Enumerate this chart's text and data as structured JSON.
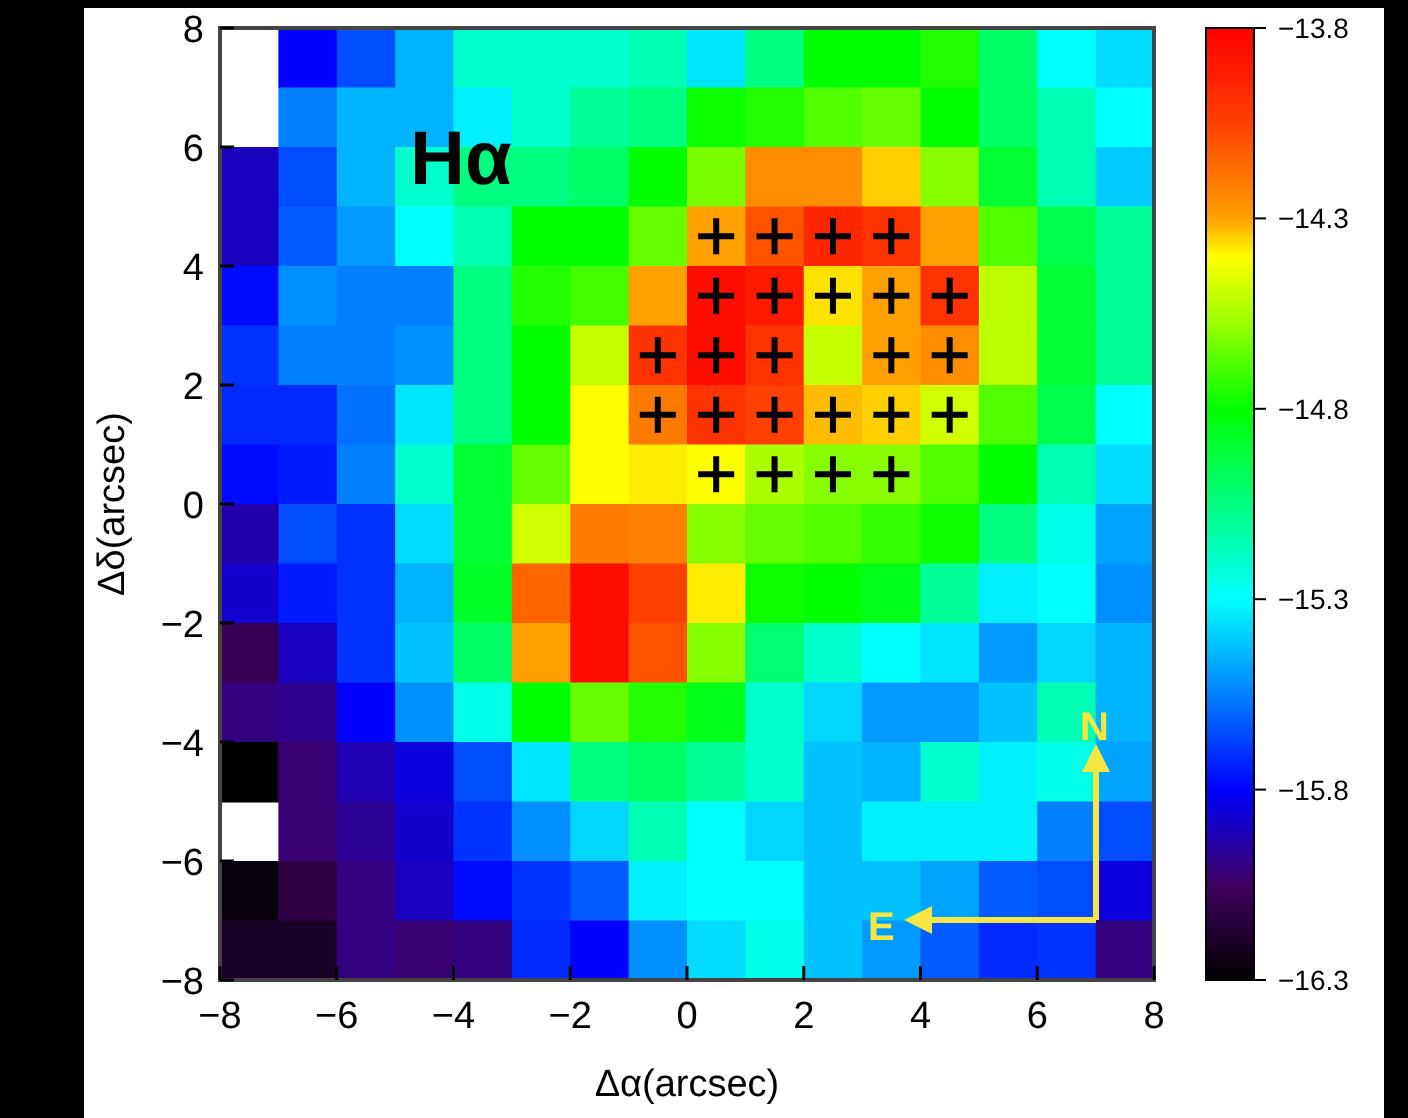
{
  "chart_data": {
    "type": "heatmap",
    "xlabel": "Δα(arcsec)",
    "ylabel": "Δδ(arcsec)",
    "xlim": [
      -8,
      8
    ],
    "ylim": [
      -8,
      8
    ],
    "xticks": [
      -8,
      -6,
      -4,
      -2,
      0,
      2,
      4,
      6,
      8
    ],
    "yticks": [
      -8,
      -6,
      -4,
      -2,
      0,
      2,
      4,
      6,
      8
    ],
    "clim": [
      -16.3,
      -13.8
    ],
    "cticks": [
      -16.3,
      -15.8,
      -15.3,
      -14.8,
      -14.3,
      -13.8
    ],
    "cells": [
      [
        null,
        -15.8,
        -15.65,
        -15.45,
        -15.2,
        -15.2,
        -15.2,
        -15.15,
        -15.35,
        -15.05,
        -14.8,
        -14.8,
        -14.75,
        -15.0,
        -15.3,
        -15.37
      ],
      [
        null,
        -15.55,
        -15.45,
        -15.45,
        -15.33,
        -15.2,
        -15.1,
        -15.05,
        -14.78,
        -14.75,
        -14.68,
        -14.65,
        -14.8,
        -15.0,
        -15.15,
        -15.3
      ],
      [
        -15.9,
        -15.65,
        -15.45,
        -15.2,
        -15.05,
        -15.05,
        -15.0,
        -14.8,
        -14.62,
        -14.25,
        -14.25,
        -14.35,
        -14.6,
        -14.9,
        -15.15,
        -15.4
      ],
      [
        -15.9,
        -15.62,
        -15.5,
        -15.3,
        -15.15,
        -14.8,
        -14.8,
        -14.65,
        -14.3,
        -14.1,
        -13.95,
        -14.0,
        -14.3,
        -14.68,
        -14.95,
        -15.1
      ],
      [
        -15.78,
        -15.52,
        -15.55,
        -15.55,
        -15.05,
        -14.75,
        -14.7,
        -14.3,
        -13.85,
        -13.9,
        -14.37,
        -14.3,
        -14.0,
        -14.52,
        -14.9,
        -15.1
      ],
      [
        -15.7,
        -15.55,
        -15.55,
        -15.52,
        -15.05,
        -14.8,
        -14.5,
        -14.0,
        -13.85,
        -14.0,
        -14.5,
        -14.3,
        -14.25,
        -14.52,
        -14.9,
        -15.1
      ],
      [
        -15.72,
        -15.72,
        -15.58,
        -15.35,
        -15.05,
        -14.8,
        -14.4,
        -14.2,
        -14.0,
        -14.05,
        -14.33,
        -14.35,
        -14.48,
        -14.68,
        -14.95,
        -15.3
      ],
      [
        -15.78,
        -15.75,
        -15.55,
        -15.2,
        -14.9,
        -14.65,
        -14.4,
        -14.38,
        -14.4,
        -14.55,
        -14.6,
        -14.6,
        -14.68,
        -14.8,
        -15.15,
        -15.37
      ],
      [
        -15.93,
        -15.65,
        -15.7,
        -15.37,
        -14.9,
        -14.48,
        -14.2,
        -14.22,
        -14.6,
        -14.65,
        -14.68,
        -14.72,
        -14.78,
        -15.05,
        -15.25,
        -15.48
      ],
      [
        -15.88,
        -15.75,
        -15.7,
        -15.45,
        -14.88,
        -14.15,
        -13.85,
        -14.05,
        -14.38,
        -14.78,
        -14.8,
        -14.85,
        -15.1,
        -15.33,
        -15.3,
        -15.52
      ],
      [
        -16.08,
        -15.9,
        -15.7,
        -15.42,
        -15.0,
        -14.3,
        -13.85,
        -14.1,
        -14.6,
        -15.02,
        -15.2,
        -15.3,
        -15.35,
        -15.5,
        -15.38,
        -15.45
      ],
      [
        -16.0,
        -15.98,
        -15.8,
        -15.52,
        -15.25,
        -14.8,
        -14.65,
        -14.75,
        -14.85,
        -15.2,
        -15.38,
        -15.5,
        -15.5,
        -15.42,
        -15.15,
        -15.45
      ],
      [
        -16.3,
        -16.02,
        -15.92,
        -15.85,
        -15.65,
        -15.35,
        -15.05,
        -15.0,
        -15.1,
        -15.2,
        -15.42,
        -15.45,
        -15.2,
        -15.33,
        -15.25,
        -15.48
      ],
      [
        null,
        -16.02,
        -15.97,
        -15.88,
        -15.7,
        -15.52,
        -15.38,
        -15.15,
        -15.3,
        -15.38,
        -15.42,
        -15.33,
        -15.33,
        -15.33,
        -15.55,
        -15.65
      ],
      [
        -16.27,
        -16.12,
        -16.0,
        -15.9,
        -15.78,
        -15.7,
        -15.62,
        -15.33,
        -15.3,
        -15.3,
        -15.42,
        -15.42,
        -15.48,
        -15.62,
        -15.65,
        -15.85
      ],
      [
        -16.2,
        -16.2,
        -16.0,
        -16.02,
        -16.0,
        -15.72,
        -15.8,
        -15.52,
        -15.37,
        -15.25,
        -15.42,
        -15.5,
        -15.62,
        -15.72,
        -15.7,
        -16.0
      ]
    ],
    "series": [
      {
        "type": "scatter",
        "color": "#000000",
        "marker": "cross",
        "x": [
          0.5,
          1.5,
          2.5,
          3.5,
          0.5,
          1.5,
          2.5,
          3.5,
          4.5,
          -0.5,
          0.5,
          1.5,
          3.5,
          4.5,
          -0.5,
          0.5,
          1.5,
          2.5,
          3.5,
          4.5,
          0.5,
          1.5,
          2.5,
          3.5
        ],
        "values": [
          4.5,
          4.5,
          4.5,
          4.5,
          3.5,
          3.5,
          3.5,
          3.5,
          3.5,
          2.5,
          2.5,
          2.5,
          2.5,
          2.5,
          1.5,
          1.5,
          1.5,
          1.5,
          1.5,
          1.5,
          0.5,
          0.5,
          0.5,
          0.5
        ]
      }
    ],
    "annotations": [
      "Hα",
      "N",
      "E"
    ]
  }
}
